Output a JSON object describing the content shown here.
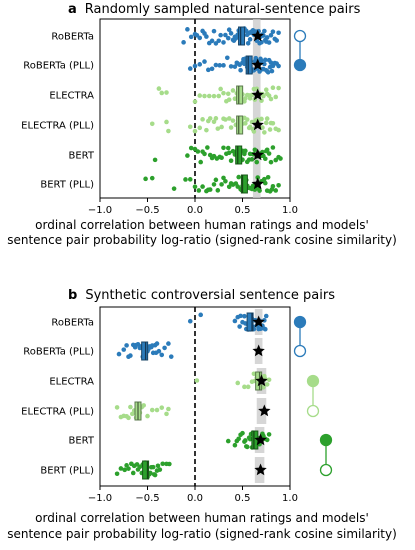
{
  "colors": {
    "roberta": "#2b7bba",
    "electra": "#a6dc8a",
    "bert": "#2ca02c",
    "ceiling": "#c8c8c8",
    "zero_line": "#000000"
  },
  "chart_data": [
    {
      "type": "scatter",
      "panel_letter": "a",
      "title": "Randomly sampled natural-sentence pairs",
      "xlabel_line1": "ordinal correlation between human ratings and models'",
      "xlabel_line2": "sentence pair probability log-ratio (signed-rank cosine similarity)",
      "xlim": [
        -1.0,
        1.0
      ],
      "xticks": [
        -1.0,
        -0.5,
        0.0,
        0.5,
        1.0
      ],
      "xtick_labels": [
        "−1.0",
        "−0.5",
        "0.0",
        "0.5",
        "1.0"
      ],
      "zero_line": "dashed",
      "noise_ceiling": [
        0.61,
        0.69
      ],
      "legend": [
        {
          "style": "open-circle",
          "color": "roberta"
        },
        {
          "style": "filled-circle",
          "color": "roberta"
        }
      ],
      "rows": [
        {
          "label": "RoBERTa",
          "color": "roberta",
          "filled": false,
          "mean": 0.49,
          "median": 0.48,
          "ceiling_marker": 0.66,
          "points": [
            -0.12,
            -0.08,
            -0.04,
            0.0,
            0.02,
            0.05,
            0.08,
            0.1,
            0.12,
            0.15,
            0.18,
            0.2,
            0.22,
            0.25,
            0.27,
            0.3,
            0.32,
            0.35,
            0.38,
            0.4,
            0.42,
            0.43,
            0.45,
            0.46,
            0.48,
            0.5,
            0.52,
            0.54,
            0.55,
            0.56,
            0.58,
            0.6,
            0.62,
            0.64,
            0.66,
            0.68,
            0.7,
            0.72,
            0.74,
            0.76,
            0.78,
            0.8,
            0.82,
            0.84,
            0.86,
            0.88,
            0.44,
            0.47,
            0.53,
            0.57,
            0.61,
            0.65,
            0.69,
            0.71,
            0.75,
            0.51,
            0.59,
            0.63,
            0.67,
            0.73,
            0.36,
            0.41
          ]
        },
        {
          "label": "RoBERTa (PLL)",
          "color": "roberta",
          "filled": true,
          "mean": 0.57,
          "median": 0.56,
          "ceiling_marker": 0.66,
          "points": [
            -0.05,
            0.0,
            0.05,
            0.1,
            0.14,
            0.18,
            0.22,
            0.26,
            0.3,
            0.34,
            0.38,
            0.42,
            0.45,
            0.48,
            0.5,
            0.52,
            0.54,
            0.56,
            0.58,
            0.6,
            0.62,
            0.64,
            0.66,
            0.68,
            0.7,
            0.72,
            0.74,
            0.76,
            0.78,
            0.8,
            0.82,
            0.84,
            0.86,
            0.88,
            0.51,
            0.55,
            0.59,
            0.63,
            0.67,
            0.71,
            0.75,
            0.79,
            0.53,
            0.57,
            0.61,
            0.65,
            0.69,
            0.73,
            0.77,
            0.81,
            0.47,
            0.44
          ]
        },
        {
          "label": "ELECTRA",
          "color": "electra",
          "filled": false,
          "mean": 0.47,
          "median": 0.46,
          "ceiling_marker": 0.66,
          "points": [
            -0.38,
            -0.35,
            -0.3,
            0.0,
            0.05,
            0.1,
            0.15,
            0.2,
            0.25,
            0.3,
            0.33,
            0.36,
            0.4,
            0.42,
            0.45,
            0.47,
            0.5,
            0.52,
            0.55,
            0.57,
            0.6,
            0.62,
            0.65,
            0.68,
            0.7,
            0.72,
            0.75,
            0.78,
            0.8,
            0.82,
            0.85,
            0.88,
            0.44,
            0.48,
            0.53,
            0.58,
            0.63,
            0.67,
            0.71,
            0.76,
            0.35,
            0.27
          ]
        },
        {
          "label": "ELECTRA (PLL)",
          "color": "electra",
          "filled": true,
          "mean": 0.47,
          "median": 0.46,
          "ceiling_marker": 0.66,
          "points": [
            -0.45,
            -0.3,
            -0.28,
            -0.05,
            0.0,
            0.05,
            0.08,
            0.12,
            0.16,
            0.2,
            0.24,
            0.28,
            0.32,
            0.36,
            0.4,
            0.43,
            0.46,
            0.49,
            0.52,
            0.55,
            0.58,
            0.61,
            0.64,
            0.67,
            0.7,
            0.73,
            0.76,
            0.79,
            0.82,
            0.85,
            0.88,
            0.44,
            0.48,
            0.53,
            0.57,
            0.62,
            0.66,
            0.71,
            0.75,
            0.8,
            0.38,
            0.3,
            0.22,
            0.14,
            0.5,
            0.6
          ]
        },
        {
          "label": "BERT",
          "color": "bert",
          "filled": false,
          "mean": 0.46,
          "median": 0.45,
          "ceiling_marker": 0.66,
          "points": [
            -0.42,
            -0.08,
            -0.04,
            0.0,
            0.03,
            0.06,
            0.1,
            0.13,
            0.16,
            0.2,
            0.23,
            0.26,
            0.3,
            0.33,
            0.36,
            0.4,
            0.42,
            0.45,
            0.48,
            0.5,
            0.52,
            0.55,
            0.58,
            0.6,
            0.62,
            0.65,
            0.68,
            0.7,
            0.72,
            0.75,
            0.78,
            0.8,
            0.82,
            0.85,
            0.88,
            0.9,
            0.44,
            0.47,
            0.53,
            0.57,
            0.61,
            0.66,
            0.71,
            0.76,
            0.38,
            0.28,
            0.18,
            0.08,
            0.5,
            0.63,
            0.74,
            0.35
          ]
        },
        {
          "label": "BERT (PLL)",
          "color": "bert",
          "filled": true,
          "mean": 0.52,
          "median": 0.5,
          "ceiling_marker": 0.66,
          "points": [
            -0.52,
            -0.45,
            -0.22,
            -0.1,
            -0.05,
            0.0,
            0.04,
            0.08,
            0.12,
            0.16,
            0.2,
            0.24,
            0.28,
            0.32,
            0.36,
            0.4,
            0.43,
            0.46,
            0.49,
            0.52,
            0.55,
            0.58,
            0.61,
            0.64,
            0.67,
            0.7,
            0.73,
            0.76,
            0.79,
            0.82,
            0.85,
            0.88,
            0.45,
            0.5,
            0.54,
            0.59,
            0.63,
            0.68,
            0.72,
            0.77,
            0.81,
            0.38,
            0.3,
            0.22,
            0.14,
            0.56,
            0.66,
            0.74,
            0.48,
            0.6
          ]
        }
      ]
    },
    {
      "type": "scatter",
      "panel_letter": "b",
      "title": "Synthetic controversial sentence pairs",
      "xlabel_line1": "ordinal correlation between human ratings and models'",
      "xlabel_line2": "sentence pair probability log-ratio (signed-rank cosine similarity)",
      "xlim": [
        -1.0,
        1.0
      ],
      "xticks": [
        -1.0,
        -0.5,
        0.0,
        0.5,
        1.0
      ],
      "xtick_labels": [
        "−1.0",
        "−0.5",
        "0.0",
        "0.5",
        "1.0"
      ],
      "zero_line": "dashed",
      "noise_ceiling_per_row": true,
      "legend": [
        {
          "style": "filled-circle",
          "color": "roberta",
          "pair_with": "open-circle"
        },
        {
          "style": "filled-circle",
          "color": "electra",
          "pair_with": "open-circle"
        },
        {
          "style": "filled-circle",
          "color": "bert",
          "pair_with": "open-circle"
        }
      ],
      "rows": [
        {
          "label": "RoBERTa",
          "color": "roberta",
          "filled": false,
          "mean": 0.58,
          "median": 0.6,
          "ceiling": [
            0.63,
            0.71
          ],
          "ceiling_marker": 0.67,
          "points": [
            -0.05,
            0.42,
            0.45,
            0.48,
            0.5,
            0.52,
            0.55,
            0.57,
            0.58,
            0.6,
            0.62,
            0.63,
            0.65,
            0.67,
            0.68,
            0.7,
            0.72,
            0.74,
            0.75,
            0.54,
            0.59,
            0.61,
            0.64,
            0.66,
            0.69,
            0.73,
            0.47,
            0.53,
            0.56,
            0.71,
            0.06
          ]
        },
        {
          "label": "RoBERTa (PLL)",
          "color": "roberta",
          "filled": true,
          "mean": -0.53,
          "median": -0.52,
          "ceiling": [
            0.63,
            0.71
          ],
          "ceiling_marker": 0.67,
          "points": [
            -0.8,
            -0.75,
            -0.72,
            -0.68,
            -0.65,
            -0.63,
            -0.6,
            -0.58,
            -0.56,
            -0.54,
            -0.52,
            -0.5,
            -0.48,
            -0.46,
            -0.44,
            -0.42,
            -0.4,
            -0.38,
            -0.35,
            -0.32,
            -0.28,
            -0.25,
            -0.62,
            -0.57,
            -0.53,
            -0.49,
            -0.45,
            -0.41,
            -0.7,
            -0.55
          ]
        },
        {
          "label": "ELECTRA",
          "color": "electra",
          "filled": false,
          "mean": 0.67,
          "median": 0.68,
          "ceiling": [
            0.65,
            0.75
          ],
          "ceiling_marker": 0.7,
          "points": [
            0.02,
            0.45,
            0.52,
            0.56,
            0.6,
            0.63,
            0.65,
            0.67,
            0.68,
            0.7,
            0.72,
            0.74,
            0.76,
            0.78,
            0.66,
            0.69,
            0.71,
            0.73,
            0.62
          ]
        },
        {
          "label": "ELECTRA (PLL)",
          "color": "electra",
          "filled": true,
          "mean": -0.6,
          "median": -0.6,
          "ceiling": [
            0.65,
            0.75
          ],
          "ceiling_marker": 0.73,
          "points": [
            -0.82,
            -0.78,
            -0.75,
            -0.72,
            -0.7,
            -0.68,
            -0.66,
            -0.64,
            -0.62,
            -0.6,
            -0.58,
            -0.56,
            -0.54,
            -0.5,
            -0.45,
            -0.4,
            -0.35,
            -0.3,
            -0.28
          ]
        },
        {
          "label": "BERT",
          "color": "bert",
          "filled": false,
          "mean": 0.63,
          "median": 0.62,
          "ceiling": [
            0.63,
            0.73
          ],
          "ceiling_marker": 0.69,
          "points": [
            0.35,
            0.42,
            0.46,
            0.5,
            0.53,
            0.55,
            0.57,
            0.59,
            0.61,
            0.62,
            0.64,
            0.66,
            0.68,
            0.7,
            0.72,
            0.74,
            0.76,
            0.78,
            0.54,
            0.58,
            0.6,
            0.63,
            0.65,
            0.67,
            0.69,
            0.71,
            0.48,
            0.44,
            0.52
          ]
        },
        {
          "label": "BERT (PLL)",
          "color": "bert",
          "filled": true,
          "mean": -0.52,
          "median": -0.5,
          "ceiling": [
            0.63,
            0.73
          ],
          "ceiling_marker": 0.69,
          "points": [
            -0.82,
            -0.78,
            -0.74,
            -0.7,
            -0.67,
            -0.64,
            -0.61,
            -0.58,
            -0.56,
            -0.54,
            -0.52,
            -0.5,
            -0.48,
            -0.46,
            -0.44,
            -0.42,
            -0.4,
            -0.37,
            -0.34,
            -0.3,
            -0.27,
            -0.6,
            -0.55,
            -0.51,
            -0.47,
            -0.43,
            -0.39,
            -0.65,
            -0.72,
            -0.53
          ]
        }
      ]
    }
  ]
}
